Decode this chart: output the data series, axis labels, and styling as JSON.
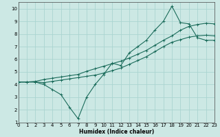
{
  "xlabel": "Humidex (Indice chaleur)",
  "bg_color": "#cce8e4",
  "grid_color": "#aad4d0",
  "line_color": "#1a6b5a",
  "x_values": [
    0,
    1,
    2,
    3,
    4,
    5,
    6,
    7,
    8,
    9,
    10,
    11,
    12,
    13,
    14,
    15,
    16,
    17,
    18,
    19,
    20,
    21,
    22,
    23
  ],
  "line1": [
    4.2,
    4.2,
    4.2,
    4.0,
    3.6,
    3.2,
    2.2,
    1.3,
    3.0,
    4.0,
    4.8,
    5.7,
    5.5,
    6.5,
    7.0,
    7.5,
    8.3,
    9.0,
    10.2,
    8.9,
    8.8,
    7.7,
    7.5,
    7.5
  ],
  "line2": [
    4.2,
    4.2,
    4.25,
    4.4,
    4.5,
    4.6,
    4.7,
    4.8,
    5.05,
    5.25,
    5.45,
    5.65,
    5.85,
    6.1,
    6.4,
    6.7,
    7.1,
    7.5,
    7.85,
    8.3,
    8.6,
    8.75,
    8.85,
    8.8
  ],
  "line3": [
    4.2,
    4.2,
    4.2,
    4.15,
    4.25,
    4.35,
    4.45,
    4.55,
    4.65,
    4.75,
    4.9,
    5.1,
    5.3,
    5.6,
    5.9,
    6.2,
    6.6,
    7.0,
    7.35,
    7.55,
    7.75,
    7.85,
    7.9,
    7.85
  ],
  "xlim": [
    0,
    23
  ],
  "ylim": [
    1,
    10.5
  ],
  "yticks": [
    1,
    2,
    3,
    4,
    5,
    6,
    7,
    8,
    9,
    10
  ],
  "xticks": [
    0,
    1,
    2,
    3,
    4,
    5,
    6,
    7,
    8,
    9,
    10,
    11,
    12,
    13,
    14,
    15,
    16,
    17,
    18,
    19,
    20,
    21,
    22,
    23
  ],
  "xlabel_fontsize": 5.5,
  "tick_fontsize": 5.0,
  "linewidth": 0.8,
  "markersize": 2.5,
  "markeredgewidth": 0.7
}
